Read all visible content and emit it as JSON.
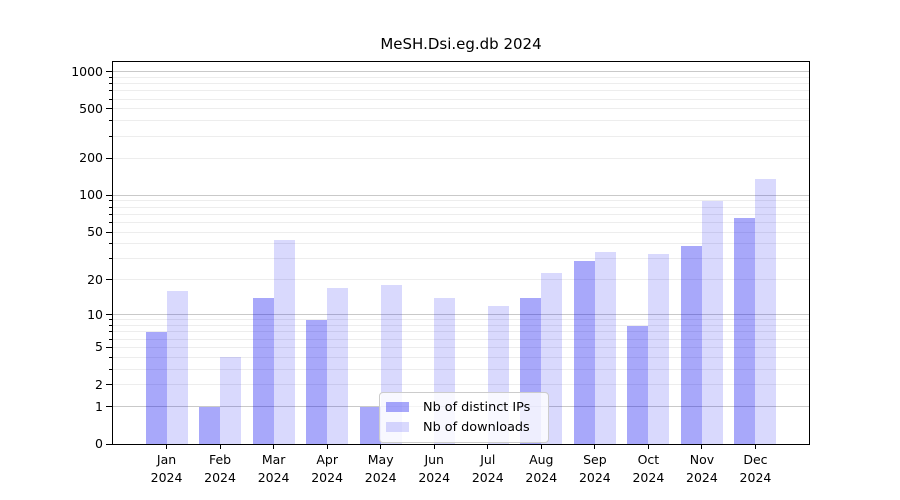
{
  "chart_data": {
    "type": "bar",
    "title": "MeSH.Dsi.eg.db 2024",
    "categories": [
      "Jan 2024",
      "Feb 2024",
      "Mar 2024",
      "Apr 2024",
      "May 2024",
      "Jun 2024",
      "Jul 2024",
      "Aug 2024",
      "Sep 2024",
      "Oct 2024",
      "Nov 2024",
      "Dec 2024"
    ],
    "series": [
      {
        "name": "Nb of distinct IPs",
        "color": "#a8a8fa",
        "values": [
          7,
          1,
          14,
          9,
          1,
          0,
          0,
          14,
          29,
          8,
          38,
          65
        ]
      },
      {
        "name": "Nb of downloads",
        "color": "#d8d8fa",
        "values": [
          16,
          4,
          43,
          17,
          18,
          14,
          12,
          23,
          34,
          33,
          90,
          135
        ]
      }
    ],
    "xlabel": "",
    "ylabel": "",
    "y_scale": "log10(1+x)",
    "y_tick_values": [
      0,
      1,
      2,
      5,
      10,
      20,
      50,
      100,
      200,
      500,
      1000
    ],
    "y_tick_labels": [
      "0",
      "1",
      "2",
      "5",
      "10",
      "20",
      "50",
      "100",
      "200",
      "500",
      "1000"
    ],
    "y_minor_grid_values": [
      2,
      3,
      4,
      5,
      6,
      7,
      8,
      9,
      20,
      30,
      40,
      50,
      60,
      70,
      80,
      90,
      200,
      300,
      400,
      500,
      600,
      700,
      800,
      900
    ],
    "y_major_grid_values": [
      1,
      10,
      100,
      1000
    ],
    "y_minor_tick_values": [
      3,
      4,
      6,
      7,
      8,
      9,
      30,
      40,
      60,
      70,
      80,
      90,
      300,
      400,
      600,
      700,
      800,
      900
    ],
    "ylim": [
      0,
      1193
    ],
    "grid": true,
    "legend_position": "lower center"
  },
  "legend": {
    "items": [
      {
        "label": "Nb of distinct IPs",
        "color": "#a8a8fa",
        "fill_rgba": "rgba(0,0,240,0.34)"
      },
      {
        "label": "Nb of downloads",
        "color": "#d8d8fa",
        "fill_rgba": "rgba(0,0,240,0.15)"
      }
    ]
  },
  "colors": {
    "background": "#ffffff",
    "spine": "#000000",
    "major_grid": "#c9c9c9",
    "minor_grid": "#ededed",
    "bar_dark_hex": "#a8a8fa",
    "bar_light_hex": "#d8d8fa"
  }
}
